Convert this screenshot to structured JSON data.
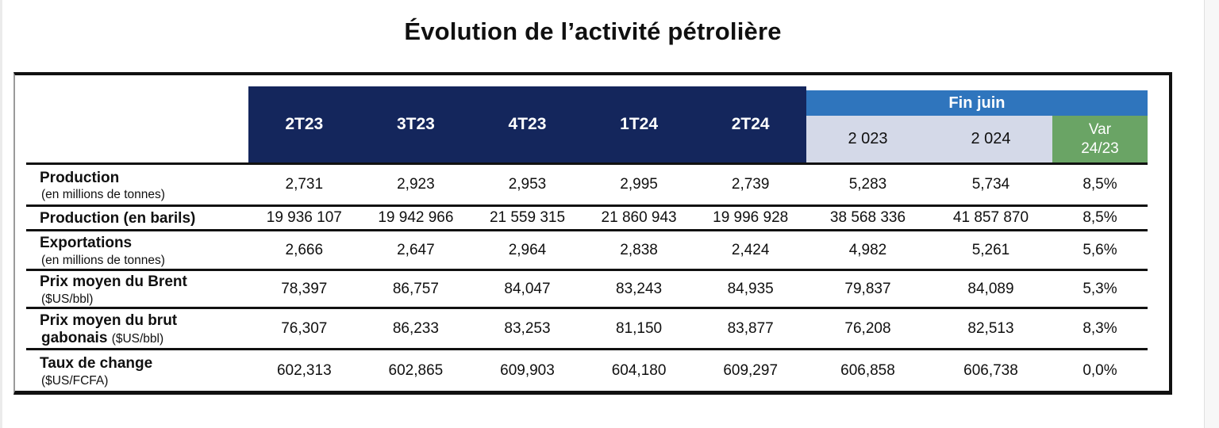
{
  "title": "Évolution de l’activité pétrolière",
  "colors": {
    "header_navy": "#14265c",
    "fin_juin_blue": "#2f75bd",
    "year_lavender": "#d4d9e8",
    "var_green": "#6aa465"
  },
  "table": {
    "quarter_headers": [
      "2T23",
      "3T23",
      "4T23",
      "1T24",
      "2T24"
    ],
    "fin_juin": {
      "label": "Fin juin",
      "year_2023": "2 023",
      "year_2024": "2 024",
      "var_line1": "Var",
      "var_line2": "24/23"
    },
    "rows": [
      {
        "label": "Production",
        "label2_bold": "",
        "sub": "(en millions de tonnes)",
        "values": [
          "2,731",
          "2,923",
          "2,953",
          "2,995",
          "2,739",
          "5,283",
          "5,734",
          "8,5%"
        ]
      },
      {
        "label": "Production (en barils)",
        "label2_bold": "",
        "sub": "",
        "values": [
          "19 936 107",
          "19 942 966",
          "21 559 315",
          "21 860 943",
          "19 996 928",
          "38 568 336",
          "41 857 870",
          "8,5%"
        ]
      },
      {
        "label": "Exportations",
        "label2_bold": "",
        "sub": "(en millions de tonnes)",
        "values": [
          "2,666",
          "2,647",
          "2,964",
          "2,838",
          "2,424",
          "4,982",
          "5,261",
          "5,6%"
        ]
      },
      {
        "label": "Prix moyen du Brent",
        "label2_bold": "",
        "sub": "($US/bbl)",
        "values": [
          "78,397",
          "86,757",
          "84,047",
          "83,243",
          "84,935",
          "79,837",
          "84,089",
          "5,3%"
        ]
      },
      {
        "label": "Prix moyen du brut",
        "label2_bold": "gabonais",
        "sub": "($US/bbl)",
        "values": [
          "76,307",
          "86,233",
          "83,253",
          "81,150",
          "83,877",
          "76,208",
          "82,513",
          "8,3%"
        ]
      },
      {
        "label": "Taux de change",
        "label2_bold": "",
        "sub": "($US/FCFA)",
        "values": [
          "602,313",
          "602,865",
          "609,903",
          "604,180",
          "609,297",
          "606,858",
          "606,738",
          "0,0%"
        ]
      }
    ]
  }
}
